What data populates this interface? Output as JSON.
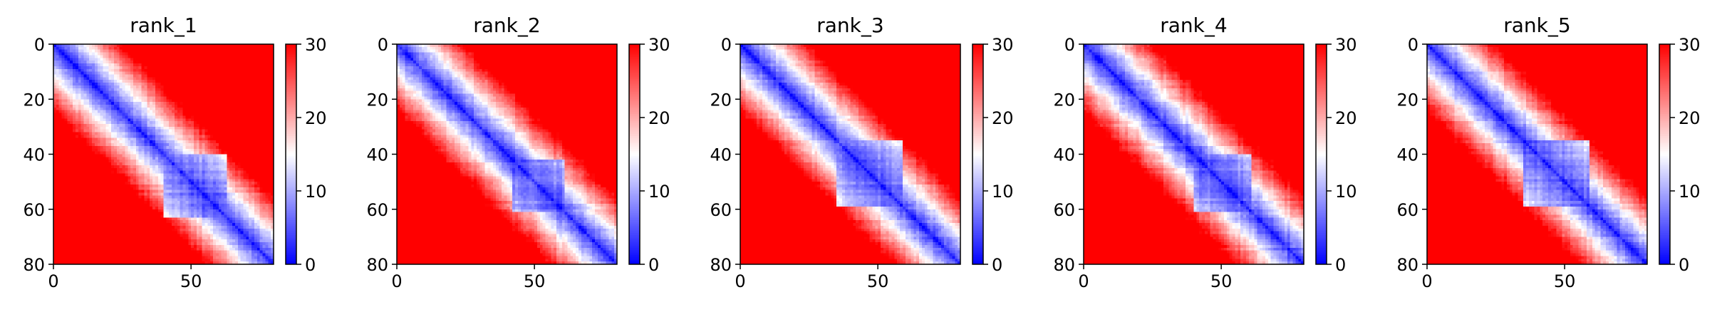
{
  "chart_data": [
    {
      "type": "heatmap",
      "title": "rank_1",
      "x_ticks": [
        "0",
        "50"
      ],
      "y_ticks": [
        "0",
        "20",
        "40",
        "60",
        "80"
      ],
      "colorbar_ticks": [
        "0",
        "10",
        "20",
        "30"
      ],
      "xlim": [
        0,
        80
      ],
      "ylim": [
        80,
        0
      ],
      "clim": [
        0,
        30
      ],
      "colormap": [
        "#0000ff",
        "#ffffff",
        "#ff0000"
      ],
      "matrix_size": 80,
      "domain_boundaries": [
        40,
        62
      ]
    },
    {
      "type": "heatmap",
      "title": "rank_2",
      "x_ticks": [
        "0",
        "50"
      ],
      "y_ticks": [
        "0",
        "20",
        "40",
        "60",
        "80"
      ],
      "colorbar_ticks": [
        "0",
        "10",
        "20",
        "30"
      ],
      "xlim": [
        0,
        80
      ],
      "ylim": [
        80,
        0
      ],
      "clim": [
        0,
        30
      ],
      "colormap": [
        "#0000ff",
        "#ffffff",
        "#ff0000"
      ],
      "matrix_size": 80,
      "domain_boundaries": [
        42,
        60
      ]
    },
    {
      "type": "heatmap",
      "title": "rank_3",
      "x_ticks": [
        "0",
        "50"
      ],
      "y_ticks": [
        "0",
        "20",
        "40",
        "60",
        "80"
      ],
      "colorbar_ticks": [
        "0",
        "10",
        "20",
        "30"
      ],
      "xlim": [
        0,
        80
      ],
      "ylim": [
        80,
        0
      ],
      "clim": [
        0,
        30
      ],
      "colormap": [
        "#0000ff",
        "#ffffff",
        "#ff0000"
      ],
      "matrix_size": 80,
      "domain_boundaries": [
        35,
        58
      ]
    },
    {
      "type": "heatmap",
      "title": "rank_4",
      "x_ticks": [
        "0",
        "50"
      ],
      "y_ticks": [
        "0",
        "20",
        "40",
        "60",
        "80"
      ],
      "colorbar_ticks": [
        "0",
        "10",
        "20",
        "30"
      ],
      "xlim": [
        0,
        80
      ],
      "ylim": [
        80,
        0
      ],
      "clim": [
        0,
        30
      ],
      "colormap": [
        "#0000ff",
        "#ffffff",
        "#ff0000"
      ],
      "matrix_size": 80,
      "domain_boundaries": [
        40,
        60
      ]
    },
    {
      "type": "heatmap",
      "title": "rank_5",
      "x_ticks": [
        "0",
        "50"
      ],
      "y_ticks": [
        "0",
        "20",
        "40",
        "60",
        "80"
      ],
      "colorbar_ticks": [
        "0",
        "10",
        "20",
        "30"
      ],
      "xlim": [
        0,
        80
      ],
      "ylim": [
        80,
        0
      ],
      "clim": [
        0,
        30
      ],
      "colormap": [
        "#0000ff",
        "#ffffff",
        "#ff0000"
      ],
      "matrix_size": 80,
      "domain_boundaries": [
        35,
        58
      ]
    }
  ]
}
